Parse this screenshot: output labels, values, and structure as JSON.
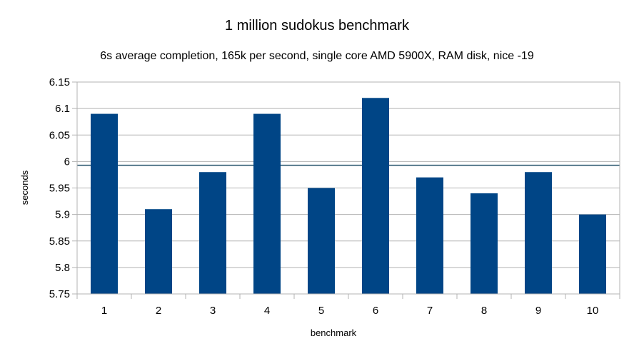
{
  "chart_data": {
    "type": "bar",
    "title": "1 million sudokus benchmark",
    "subtitle": "6s average completion, 165k per second, single core AMD 5900X, RAM disk, nice -19",
    "xlabel": "benchmark",
    "ylabel": "seconds",
    "categories": [
      "1",
      "2",
      "3",
      "4",
      "5",
      "6",
      "7",
      "8",
      "9",
      "10"
    ],
    "values": [
      6.09,
      5.91,
      5.98,
      6.09,
      5.95,
      6.12,
      5.97,
      5.94,
      5.98,
      5.9
    ],
    "ylim": [
      5.75,
      6.15
    ],
    "yticks": [
      "5.75",
      "5.8",
      "5.85",
      "5.9",
      "5.95",
      "6",
      "6.05",
      "6.1",
      "6.15"
    ],
    "reference_line": 5.993,
    "grid": true,
    "bar_color": "#004586",
    "reference_line_color": "#1f4e66",
    "grid_color": "#b3b3b3"
  }
}
